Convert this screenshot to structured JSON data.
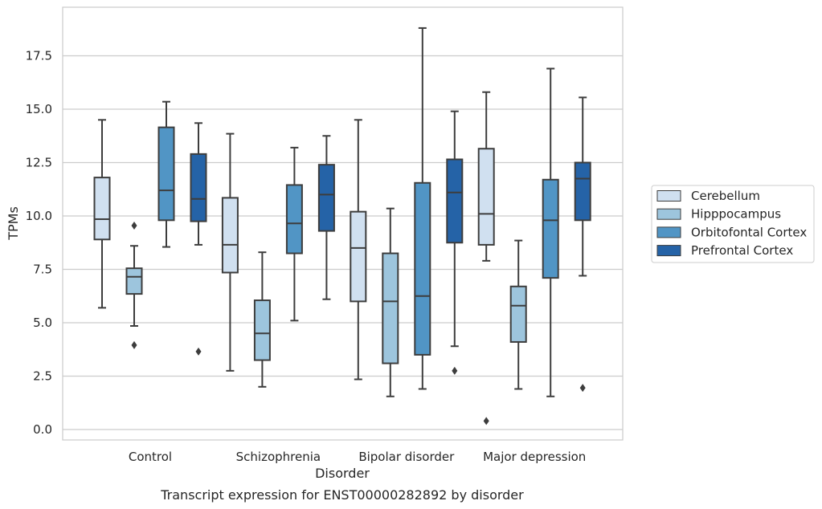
{
  "chart_data": {
    "type": "box",
    "title": "",
    "caption": "Transcript expression for ENST00000282892 by disorder",
    "xlabel": "Disorder",
    "ylabel": "TPMs",
    "ylim": [
      -0.5,
      19.7
    ],
    "yticks": [
      "0.0",
      "2.5",
      "5.0",
      "7.5",
      "10.0",
      "12.5",
      "15.0",
      "17.5"
    ],
    "ytick_values": [
      0,
      2.5,
      5,
      7.5,
      10,
      12.5,
      15,
      17.5
    ],
    "categories": [
      "Control",
      "Schizophrenia",
      "Bipolar disorder",
      "Major depression"
    ],
    "grid": "horizontal",
    "legend_position": "right",
    "series": [
      {
        "name": "Cerebellum",
        "color": "#d0e0f0",
        "boxes": [
          {
            "whisker_low": 5.7,
            "q1": 8.9,
            "median": 9.85,
            "q3": 11.8,
            "whisker_high": 14.5,
            "outliers": []
          },
          {
            "whisker_low": 2.75,
            "q1": 7.35,
            "median": 8.65,
            "q3": 10.85,
            "whisker_high": 13.85,
            "outliers": []
          },
          {
            "whisker_low": 2.35,
            "q1": 6.0,
            "median": 8.5,
            "q3": 10.2,
            "whisker_high": 14.5,
            "outliers": []
          },
          {
            "whisker_low": 7.9,
            "q1": 8.65,
            "median": 10.1,
            "q3": 13.15,
            "whisker_high": 15.8,
            "outliers": [
              0.4
            ]
          }
        ]
      },
      {
        "name": "Hipppocampus",
        "color": "#9dc5dd",
        "boxes": [
          {
            "whisker_low": 4.85,
            "q1": 6.35,
            "median": 7.15,
            "q3": 7.55,
            "whisker_high": 8.6,
            "outliers": [
              9.55,
              3.95
            ]
          },
          {
            "whisker_low": 2.0,
            "q1": 3.25,
            "median": 4.5,
            "q3": 6.05,
            "whisker_high": 8.3,
            "outliers": []
          },
          {
            "whisker_low": 1.55,
            "q1": 3.1,
            "median": 6.0,
            "q3": 8.25,
            "whisker_high": 10.35,
            "outliers": []
          },
          {
            "whisker_low": 1.9,
            "q1": 4.1,
            "median": 5.8,
            "q3": 6.7,
            "whisker_high": 8.85,
            "outliers": []
          }
        ]
      },
      {
        "name": "Orbitofontal Cortex",
        "color": "#5195c5",
        "boxes": [
          {
            "whisker_low": 8.55,
            "q1": 9.8,
            "median": 11.2,
            "q3": 14.15,
            "whisker_high": 15.35,
            "outliers": []
          },
          {
            "whisker_low": 5.1,
            "q1": 8.25,
            "median": 9.65,
            "q3": 11.45,
            "whisker_high": 13.2,
            "outliers": []
          },
          {
            "whisker_low": 1.9,
            "q1": 3.5,
            "median": 6.25,
            "q3": 11.55,
            "whisker_high": 18.8,
            "outliers": []
          },
          {
            "whisker_low": 1.55,
            "q1": 7.1,
            "median": 9.8,
            "q3": 11.7,
            "whisker_high": 16.9,
            "outliers": []
          }
        ]
      },
      {
        "name": "Prefrontal Cortex",
        "color": "#2563a7",
        "boxes": [
          {
            "whisker_low": 8.65,
            "q1": 9.75,
            "median": 10.8,
            "q3": 12.9,
            "whisker_high": 14.35,
            "outliers": [
              3.65
            ]
          },
          {
            "whisker_low": 6.1,
            "q1": 9.3,
            "median": 11.0,
            "q3": 12.4,
            "whisker_high": 13.75,
            "outliers": []
          },
          {
            "whisker_low": 3.9,
            "q1": 8.75,
            "median": 11.1,
            "q3": 12.65,
            "whisker_high": 14.9,
            "outliers": [
              2.75
            ]
          },
          {
            "whisker_low": 7.2,
            "q1": 9.8,
            "median": 11.75,
            "q3": 12.5,
            "whisker_high": 15.55,
            "outliers": [
              1.95
            ]
          }
        ]
      }
    ]
  }
}
